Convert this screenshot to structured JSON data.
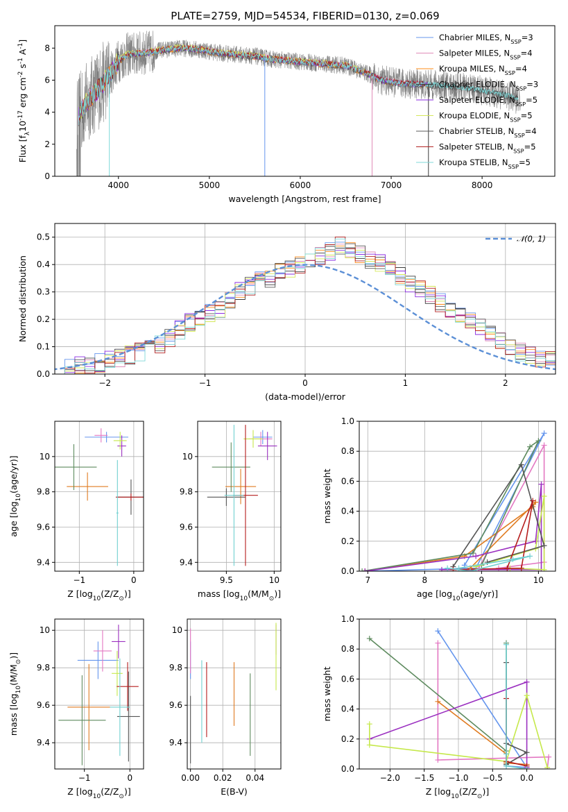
{
  "figure": {
    "title": "PLATE=2759, MJD=54534, FIBERID=0130, z=0.069"
  },
  "colors": {
    "data": "#808080",
    "grid": "#b0b0b0",
    "models": [
      "#6495ed",
      "#e08cb8",
      "#ff8c1a",
      "#3a3a3a",
      "#8a2be2",
      "#d4e85a",
      "#5a5a5a",
      "#b22222",
      "#7fd8d8"
    ],
    "small": [
      "#6495ed",
      "#e377c2",
      "#e07b20",
      "#5d8a5e",
      "#9b30c0",
      "#c5e84a",
      "#555555",
      "#b51d1d",
      "#70d0d0"
    ]
  },
  "chart_data": [
    {
      "type": "line",
      "id": "spectrum",
      "title": "PLATE=2759, MJD=54534, FIBERID=0130, z=0.069",
      "xlabel": "wavelength [Angstrom, rest frame]",
      "ylabel": "Flux [f$_\\lambda$10$^{-17}$ erg cm$^{-2}$ s$^{-1}$ A$^{-1}$]",
      "xlim": [
        3300,
        8800
      ],
      "ylim": [
        0,
        9.4
      ],
      "xticks": [
        "4000",
        "5000",
        "6000",
        "7000",
        "8000"
      ],
      "yticks": [
        "0",
        "2",
        "4",
        "6",
        "8"
      ],
      "grid": false,
      "legend_position": "top-right",
      "continuum": [
        [
          3560,
          3.8
        ],
        [
          3650,
          4.6
        ],
        [
          3800,
          5.6
        ],
        [
          3900,
          6.3
        ],
        [
          4000,
          7.2
        ],
        [
          4100,
          7.6
        ],
        [
          4300,
          7.7
        ],
        [
          4500,
          7.9
        ],
        [
          4700,
          8.0
        ],
        [
          4900,
          7.9
        ],
        [
          5100,
          7.7
        ],
        [
          5300,
          7.6
        ],
        [
          5500,
          7.5
        ],
        [
          5700,
          7.3
        ],
        [
          5900,
          7.2
        ],
        [
          6100,
          7.1
        ],
        [
          6300,
          7.0
        ],
        [
          6500,
          6.9
        ],
        [
          6700,
          6.5
        ],
        [
          6900,
          6.0
        ],
        [
          7100,
          5.8
        ],
        [
          7300,
          5.75
        ],
        [
          7500,
          5.7
        ],
        [
          7700,
          5.6
        ],
        [
          7900,
          5.45
        ],
        [
          8100,
          5.25
        ],
        [
          8300,
          5.0
        ],
        [
          8400,
          4.8
        ],
        [
          8600,
          4.6
        ]
      ],
      "series": [
        {
          "label_a": "Chabrier MILES, N",
          "sub": "SSP",
          "label_b": "=3"
        },
        {
          "label_a": "Salpeter MILES, N",
          "sub": "SSP",
          "label_b": "=4"
        },
        {
          "label_a": "Kroupa MILES, N",
          "sub": "SSP",
          "label_b": "=4"
        },
        {
          "label_a": "Chabrier ELODIE, N",
          "sub": "SSP",
          "label_b": "=3"
        },
        {
          "label_a": "Salpeter ELODIE, N",
          "sub": "SSP",
          "label_b": "=5"
        },
        {
          "label_a": "Kroupa ELODIE, N",
          "sub": "SSP",
          "label_b": "=5"
        },
        {
          "label_a": "Chabrier STELIB, N",
          "sub": "SSP",
          "label_b": "=4"
        },
        {
          "label_a": "Salpeter STELIB, N",
          "sub": "SSP",
          "label_b": "=5"
        },
        {
          "label_a": "Kroupa STELIB, N",
          "sub": "SSP",
          "label_b": "=5"
        }
      ]
    },
    {
      "type": "step",
      "id": "residuals",
      "xlabel": "(data-model)/error",
      "ylabel": "Normed distribution",
      "xlim": [
        -2.5,
        2.5
      ],
      "ylim": [
        0,
        0.55
      ],
      "xticks": [
        "−2",
        "−1",
        "0",
        "1",
        "2"
      ],
      "yticks": [
        "0.0",
        "0.1",
        "0.2",
        "0.3",
        "0.4",
        "0.5"
      ],
      "grid": true,
      "legend_position": "top-right",
      "legend_label": "𝒩(0, 1)",
      "bin_width": 0.1,
      "bins_start": -2.5,
      "base": [
        0.02,
        0.02,
        0.03,
        0.03,
        0.04,
        0.05,
        0.06,
        0.07,
        0.08,
        0.09,
        0.11,
        0.13,
        0.16,
        0.19,
        0.21,
        0.22,
        0.24,
        0.27,
        0.3,
        0.32,
        0.34,
        0.35,
        0.37,
        0.38,
        0.4,
        0.41,
        0.43,
        0.45,
        0.47,
        0.45,
        0.44,
        0.42,
        0.41,
        0.39,
        0.36,
        0.33,
        0.31,
        0.29,
        0.26,
        0.24,
        0.21,
        0.19,
        0.17,
        0.15,
        0.12,
        0.1,
        0.08,
        0.07,
        0.06,
        0.05
      ]
    },
    {
      "type": "errorbar",
      "id": "age-vs-Z",
      "xlabel": "Z [log$_{10}$(Z/Z$_\\odot$)]",
      "ylabel": "age  [log$_{10}$(age/yr)]",
      "xlim": [
        -1.45,
        0.18
      ],
      "ylim": [
        9.35,
        10.2
      ],
      "xticks": [
        -1,
        0
      ],
      "yticks": [
        9.4,
        9.6,
        9.8,
        10.0
      ],
      "points": [
        {
          "x": -0.5,
          "y": 10.11,
          "xe": 0.4,
          "ye": 0.03
        },
        {
          "x": -0.6,
          "y": 10.12,
          "xe": 0.12,
          "ye": 0.04
        },
        {
          "x": -0.85,
          "y": 9.83,
          "xe": 0.38,
          "ye": 0.08
        },
        {
          "x": -1.1,
          "y": 9.94,
          "xe": 0.42,
          "ye": 0.13
        },
        {
          "x": -0.22,
          "y": 10.06,
          "xe": 0.08,
          "ye": 0.06
        },
        {
          "x": -0.25,
          "y": 10.09,
          "xe": 0.12,
          "ye": 0.05
        },
        {
          "x": -0.05,
          "y": 9.77,
          "xe": 0.26,
          "ye": 0.1
        },
        {
          "x": -0.05,
          "y": 9.77,
          "xe": 0.28,
          "ye": 0.02
        },
        {
          "x": -0.3,
          "y": 9.68,
          "xe": 0.02,
          "ye": 0.3
        }
      ]
    },
    {
      "type": "errorbar",
      "id": "age-vs-mass",
      "xlabel": "mass [log$_{10}$(M/M$_\\odot$)]",
      "ylabel": "",
      "xlim": [
        9.2,
        10.07
      ],
      "ylim": [
        9.35,
        10.2
      ],
      "xticks": [
        9.5,
        10.0
      ],
      "yticks": [
        9.4,
        9.6,
        9.8,
        10.0
      ],
      "points": [
        {
          "x": 9.88,
          "y": 10.11,
          "xe": 0.1,
          "ye": 0.04
        },
        {
          "x": 9.86,
          "y": 10.1,
          "xe": 0.12,
          "ye": 0.04
        },
        {
          "x": 9.65,
          "y": 9.83,
          "xe": 0.16,
          "ye": 0.1
        },
        {
          "x": 9.55,
          "y": 9.94,
          "xe": 0.2,
          "ye": 0.14
        },
        {
          "x": 9.93,
          "y": 10.06,
          "xe": 0.1,
          "ye": 0.08
        },
        {
          "x": 9.78,
          "y": 10.1,
          "xe": 0.1,
          "ye": 0.05
        },
        {
          "x": 9.5,
          "y": 9.77,
          "xe": 0.2,
          "ye": 0.05
        },
        {
          "x": 9.7,
          "y": 9.78,
          "xe": 0.13,
          "ye": 0.4
        },
        {
          "x": 9.58,
          "y": 9.78,
          "xe": 0.1,
          "ye": 0.4
        }
      ]
    },
    {
      "type": "line",
      "id": "mass-weight-vs-age",
      "xlabel": "age  [log$_{10}$(age/yr)]",
      "ylabel": "mass weight",
      "xlim": [
        6.85,
        10.3
      ],
      "ylim": [
        0,
        1.0
      ],
      "xticks": [
        7,
        8,
        9,
        10
      ],
      "yticks": [
        "0.0",
        "0.2",
        "0.4",
        "0.6",
        "0.8",
        "1.0"
      ],
      "series": [
        {
          "points": [
            [
              6.95,
              0.0
            ],
            [
              8.9,
              0.02
            ],
            [
              10.1,
              0.92
            ],
            [
              8.7,
              0.04
            ]
          ]
        },
        {
          "points": [
            [
              8.95,
              0.02
            ],
            [
              10.1,
              0.84
            ],
            [
              10.1,
              0.06
            ],
            [
              9.3,
              0.02
            ]
          ]
        },
        {
          "points": [
            [
              6.95,
              0.0
            ],
            [
              8.7,
              0.1
            ],
            [
              9.9,
              0.43
            ],
            [
              9.95,
              0.46
            ],
            [
              8.8,
              0.02
            ]
          ]
        },
        {
          "points": [
            [
              6.9,
              0.0
            ],
            [
              8.85,
              0.12
            ],
            [
              9.85,
              0.83
            ],
            [
              10.0,
              0.87
            ],
            [
              9.0,
              0.04
            ]
          ]
        },
        {
          "points": [
            [
              6.95,
              0.0
            ],
            [
              8.9,
              0.1
            ],
            [
              9.95,
              0.2
            ],
            [
              10.05,
              0.58
            ],
            [
              10.05,
              0.01
            ],
            [
              8.3,
              0.01
            ]
          ]
        },
        {
          "points": [
            [
              8.9,
              0.03
            ],
            [
              9.95,
              0.15
            ],
            [
              10.1,
              0.5
            ],
            [
              10.1,
              0.01
            ],
            [
              9.5,
              0.02
            ]
          ]
        },
        {
          "points": [
            [
              8.5,
              0.03
            ],
            [
              9.7,
              0.71
            ],
            [
              10.1,
              0.17
            ],
            [
              9.1,
              0.06
            ]
          ]
        },
        {
          "points": [
            [
              9.45,
              0.02
            ],
            [
              9.9,
              0.47
            ],
            [
              9.7,
              0.02
            ],
            [
              8.5,
              0.01
            ]
          ]
        },
        {
          "points": [
            [
              8.6,
              0.02
            ],
            [
              9.55,
              0.08
            ],
            [
              9.85,
              0.1
            ],
            [
              8.8,
              0.0
            ],
            [
              8.4,
              0.02
            ]
          ]
        }
      ]
    },
    {
      "type": "errorbar",
      "id": "mass-vs-Z",
      "xlabel": "Z [log$_{10}$(Z/Z$_\\odot$)]",
      "ylabel": "mass [log$_{10}$(M/M$_\\odot$)]",
      "xlim": [
        -1.65,
        0.3
      ],
      "ylim": [
        9.26,
        10.06
      ],
      "xticks": [
        -1,
        0
      ],
      "yticks": [
        9.4,
        9.6,
        9.8,
        10.0
      ],
      "points": [
        {
          "x": -0.7,
          "y": 9.84,
          "xe": 0.45,
          "ye": 0.1
        },
        {
          "x": -0.6,
          "y": 9.89,
          "xe": 0.2,
          "ye": 0.11
        },
        {
          "x": -0.9,
          "y": 9.59,
          "xe": 0.47,
          "ye": 0.23
        },
        {
          "x": -1.05,
          "y": 9.52,
          "xe": 0.52,
          "ye": 0.24
        },
        {
          "x": -0.25,
          "y": 9.94,
          "xe": 0.15,
          "ye": 0.09
        },
        {
          "x": -0.28,
          "y": 9.77,
          "xe": 0.12,
          "ye": 0.12
        },
        {
          "x": -0.03,
          "y": 9.54,
          "xe": 0.25,
          "ye": 0.24
        },
        {
          "x": -0.05,
          "y": 9.7,
          "xe": 0.24,
          "ye": 0.13
        },
        {
          "x": -0.22,
          "y": 9.59,
          "xe": 0.22,
          "ye": 0.26
        }
      ]
    },
    {
      "type": "errorbar",
      "id": "mass-vs-EBV",
      "xlabel": "E(B-V)",
      "ylabel": "",
      "xlim": [
        -0.002,
        0.056
      ],
      "ylim": [
        9.26,
        10.06
      ],
      "xticks": [
        "0.00",
        "0.02",
        "0.04"
      ],
      "yticks": [
        9.4,
        9.6,
        9.8,
        10.0
      ],
      "points": [
        {
          "x": 0.0,
          "y": 9.84,
          "xe": 0.0,
          "ye": 0.1
        },
        {
          "x": 0.0,
          "y": 9.89,
          "xe": 0.0,
          "ye": 0.12
        },
        {
          "x": 0.027,
          "y": 9.66,
          "xe": 0.0,
          "ye": 0.17
        },
        {
          "x": 0.037,
          "y": 9.55,
          "xe": 0.0,
          "ye": 0.22
        },
        {
          "x": 0.053,
          "y": 9.95,
          "xe": 0.0,
          "ye": 0.08
        },
        {
          "x": 0.053,
          "y": 9.86,
          "xe": 0.0,
          "ye": 0.18
        },
        {
          "x": 0.0,
          "y": 9.47,
          "xe": 0.0,
          "ye": 0.18
        },
        {
          "x": 0.01,
          "y": 9.63,
          "xe": 0.0,
          "ye": 0.2
        },
        {
          "x": 0.007,
          "y": 9.62,
          "xe": 0.0,
          "ye": 0.22
        }
      ]
    },
    {
      "type": "line",
      "id": "mass-weight-vs-Z",
      "xlabel": "Z [log$_{10}$(Z/Z$_\\odot$)]",
      "ylabel": "mass weight",
      "xlim": [
        -2.45,
        0.42
      ],
      "ylim": [
        0,
        1.0
      ],
      "xticks": [
        "−2.0",
        "−1.5",
        "−1.0",
        "−0.5",
        "0.0"
      ],
      "yticks": [
        "0.0",
        "0.2",
        "0.4",
        "0.6",
        "0.8",
        "1.0"
      ],
      "series": [
        {
          "points": [
            [
              -1.3,
              0.92
            ],
            [
              0.0,
              0.01
            ],
            [
              -0.3,
              0.02
            ]
          ]
        },
        {
          "points": [
            [
              -1.3,
              0.84
            ],
            [
              -1.3,
              0.06
            ],
            [
              0.32,
              0.08
            ],
            [
              0.3,
              0.0
            ]
          ]
        },
        {
          "points": [
            [
              -1.3,
              0.45
            ],
            [
              -0.3,
              0.1
            ],
            [
              -0.3,
              0.04
            ],
            [
              0.0,
              0.03
            ]
          ]
        },
        {
          "points": [
            [
              -2.3,
              0.87
            ],
            [
              -0.3,
              0.12
            ],
            [
              -0.3,
              0.84
            ],
            [
              -0.3,
              0.03
            ]
          ]
        },
        {
          "points": [
            [
              -2.3,
              0.2
            ],
            [
              0.0,
              0.58
            ],
            [
              0.0,
              0.01
            ]
          ]
        },
        {
          "points": [
            [
              -2.3,
              0.3
            ],
            [
              -2.3,
              0.16
            ],
            [
              -0.3,
              0.05
            ],
            [
              0.0,
              0.49
            ],
            [
              0.3,
              0.01
            ]
          ]
        },
        {
          "points": [
            [
              -0.3,
              0.71
            ],
            [
              -0.3,
              0.17
            ],
            [
              0.0,
              0.11
            ],
            [
              -0.3,
              0.03
            ]
          ]
        },
        {
          "points": [
            [
              -0.3,
              0.47
            ],
            [
              -0.3,
              0.05
            ],
            [
              0.0,
              0.02
            ]
          ]
        },
        {
          "points": [
            [
              -0.3,
              0.83
            ],
            [
              -0.3,
              0.1
            ],
            [
              -0.3,
              0.02
            ],
            [
              0.0,
              0.0
            ]
          ]
        }
      ]
    }
  ]
}
